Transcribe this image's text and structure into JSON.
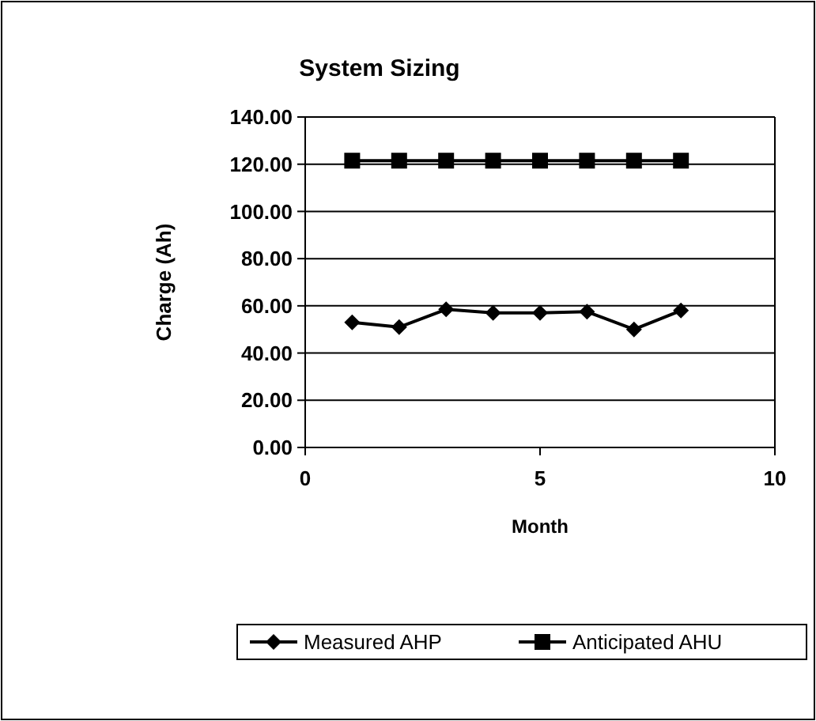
{
  "chart_data": {
    "type": "line",
    "title": "System Sizing",
    "xlabel": "Month",
    "ylabel": "Charge (Ah)",
    "x": [
      1,
      2,
      3,
      4,
      5,
      6,
      7,
      8
    ],
    "series": [
      {
        "name": "Measured AHP",
        "color": "#000000",
        "marker": "diamond",
        "values": [
          53,
          51,
          58.5,
          57,
          57,
          57.5,
          50,
          58
        ]
      },
      {
        "name": "Anticipated AHU",
        "color": "#000000",
        "marker": "square",
        "values": [
          121.5,
          121.5,
          121.5,
          121.5,
          121.5,
          121.5,
          121.5,
          121.5
        ]
      }
    ],
    "xlim": [
      0,
      10
    ],
    "xticks": [
      0,
      5,
      10
    ],
    "ylim": [
      0,
      140
    ],
    "yticks": [
      {
        "value": 0,
        "label": "0.00"
      },
      {
        "value": 20,
        "label": "20.00"
      },
      {
        "value": 40,
        "label": "40.00"
      },
      {
        "value": 60,
        "label": "60.00"
      },
      {
        "value": 80,
        "label": "80.00"
      },
      {
        "value": 100,
        "label": "100.00"
      },
      {
        "value": 120,
        "label": "120.00"
      },
      {
        "value": 140,
        "label": "140.00"
      }
    ],
    "grid": "y",
    "legend": "bottom"
  }
}
